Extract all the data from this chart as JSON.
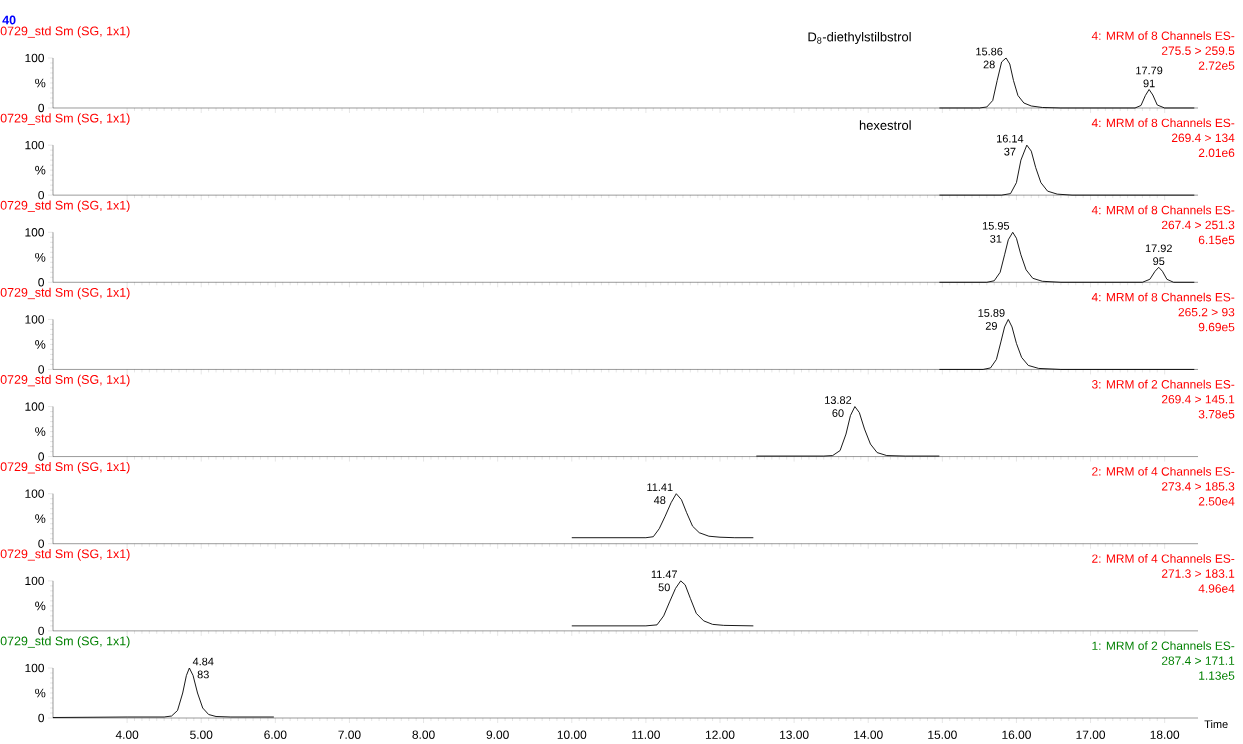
{
  "chart_data": [
    {
      "type": "line",
      "title": "0729_std Sm (SG, 1x1)",
      "subtitle": "D$_{8}$-diethylstilbstrol",
      "ylabel": "%",
      "color": "#000000",
      "xlim": [
        3.0,
        18.45
      ],
      "ylim": [
        0,
        100
      ],
      "yticks": [
        0,
        100
      ],
      "tick_labels": "y",
      "xticks": [
        {
          "value": 4,
          "label": null
        },
        {
          "value": 5,
          "label": null
        },
        {
          "value": 6,
          "label": null
        },
        {
          "value": 7,
          "label": null
        },
        {
          "value": 8,
          "label": null
        },
        {
          "value": 9,
          "label": null
        },
        {
          "value": 10,
          "label": null
        },
        {
          "value": 11,
          "label": null
        },
        {
          "value": 12,
          "label": null
        },
        {
          "value": 13,
          "label": null
        },
        {
          "value": 14,
          "label": null
        },
        {
          "value": 15,
          "label": null
        },
        {
          "value": 16,
          "label": null
        },
        {
          "value": 17,
          "label": null
        },
        {
          "value": 18,
          "label": null
        }
      ],
      "x": [
        14.96,
        15.5,
        15.6,
        15.68,
        15.74,
        15.8,
        15.86,
        15.91,
        15.96,
        16.02,
        16.1,
        16.2,
        16.35,
        16.6,
        17.6,
        17.68,
        17.74,
        17.79,
        17.84,
        17.9,
        18.0,
        18.4
      ],
      "values": [
        0,
        0,
        2,
        15,
        55,
        92,
        100,
        88,
        55,
        25,
        10,
        4,
        1,
        0,
        0,
        5,
        25,
        37,
        26,
        6,
        0,
        0
      ],
      "annotations": [
        "40",
        "4: MRM of 8 Channels ES-",
        "275.5 > 259.5",
        "2.72e5",
        {
          "text": "15.86",
          "x": 15.86,
          "y": 100
        },
        {
          "text": "28",
          "x": 15.86,
          "y": 100
        },
        {
          "text": "17.79",
          "x": 17.79,
          "y": 37
        },
        {
          "text": "91",
          "x": 17.79,
          "y": 37
        }
      ]
    },
    {
      "type": "line",
      "title": "0729_std Sm (SG, 1x1)",
      "subtitle": "hexestrol",
      "ylabel": "%",
      "color": "#000000",
      "xlim": [
        3.0,
        18.45
      ],
      "ylim": [
        0,
        100
      ],
      "yticks": [
        0,
        100
      ],
      "tick_labels": "y",
      "xticks": [
        {
          "value": 4,
          "label": null
        },
        {
          "value": 5,
          "label": null
        },
        {
          "value": 6,
          "label": null
        },
        {
          "value": 7,
          "label": null
        },
        {
          "value": 8,
          "label": null
        },
        {
          "value": 9,
          "label": null
        },
        {
          "value": 10,
          "label": null
        },
        {
          "value": 11,
          "label": null
        },
        {
          "value": 12,
          "label": null
        },
        {
          "value": 13,
          "label": null
        },
        {
          "value": 14,
          "label": null
        },
        {
          "value": 15,
          "label": null
        },
        {
          "value": 16,
          "label": null
        },
        {
          "value": 17,
          "label": null
        },
        {
          "value": 18,
          "label": null
        }
      ],
      "x": [
        14.96,
        15.8,
        15.92,
        16.0,
        16.06,
        16.14,
        16.2,
        16.26,
        16.33,
        16.42,
        16.55,
        16.75,
        18.4
      ],
      "values": [
        0,
        0,
        3,
        25,
        70,
        100,
        88,
        55,
        25,
        8,
        2,
        0,
        0
      ],
      "annotations": [
        "4: MRM of 8 Channels ES-",
        "269.4 > 134",
        "2.01e6",
        {
          "text": "16.14",
          "x": 16.14,
          "y": 100
        },
        {
          "text": "37",
          "x": 16.14,
          "y": 100
        }
      ]
    },
    {
      "type": "line",
      "title": "0729_std Sm (SG, 1x1)",
      "ylabel": "%",
      "color": "#000000",
      "xlim": [
        3.0,
        18.45
      ],
      "ylim": [
        0,
        100
      ],
      "yticks": [
        0,
        100
      ],
      "tick_labels": "y",
      "xticks": [
        {
          "value": 4,
          "label": null
        },
        {
          "value": 5,
          "label": null
        },
        {
          "value": 6,
          "label": null
        },
        {
          "value": 7,
          "label": null
        },
        {
          "value": 8,
          "label": null
        },
        {
          "value": 9,
          "label": null
        },
        {
          "value": 10,
          "label": null
        },
        {
          "value": 11,
          "label": null
        },
        {
          "value": 12,
          "label": null
        },
        {
          "value": 13,
          "label": null
        },
        {
          "value": 14,
          "label": null
        },
        {
          "value": 15,
          "label": null
        },
        {
          "value": 16,
          "label": null
        },
        {
          "value": 17,
          "label": null
        },
        {
          "value": 18,
          "label": null
        }
      ],
      "x": [
        14.96,
        15.6,
        15.7,
        15.78,
        15.84,
        15.89,
        15.95,
        16.0,
        16.06,
        16.13,
        16.22,
        16.35,
        16.6,
        17.7,
        17.8,
        17.87,
        17.92,
        17.97,
        18.03,
        18.12,
        18.4
      ],
      "values": [
        0,
        0,
        3,
        20,
        55,
        85,
        100,
        88,
        55,
        25,
        8,
        2,
        0,
        0,
        6,
        22,
        30,
        22,
        6,
        0,
        0
      ],
      "annotations": [
        "4: MRM of 8 Channels ES-",
        "267.4 > 251.3",
        "6.15e5",
        {
          "text": "15.95",
          "x": 15.95,
          "y": 100
        },
        {
          "text": "31",
          "x": 15.95,
          "y": 100
        },
        {
          "text": "17.92",
          "x": 17.92,
          "y": 30
        },
        {
          "text": "95",
          "x": 17.92,
          "y": 30
        }
      ]
    },
    {
      "type": "line",
      "title": "0729_std Sm (SG, 1x1)",
      "ylabel": "%",
      "color": "#000000",
      "xlim": [
        3.0,
        18.45
      ],
      "ylim": [
        0,
        100
      ],
      "yticks": [
        0,
        100
      ],
      "tick_labels": "y",
      "xticks": [
        {
          "value": 4,
          "label": null
        },
        {
          "value": 5,
          "label": null
        },
        {
          "value": 6,
          "label": null
        },
        {
          "value": 7,
          "label": null
        },
        {
          "value": 8,
          "label": null
        },
        {
          "value": 9,
          "label": null
        },
        {
          "value": 10,
          "label": null
        },
        {
          "value": 11,
          "label": null
        },
        {
          "value": 12,
          "label": null
        },
        {
          "value": 13,
          "label": null
        },
        {
          "value": 14,
          "label": null
        },
        {
          "value": 15,
          "label": null
        },
        {
          "value": 16,
          "label": null
        },
        {
          "value": 17,
          "label": null
        },
        {
          "value": 18,
          "label": null
        }
      ],
      "x": [
        14.96,
        15.55,
        15.65,
        15.73,
        15.79,
        15.84,
        15.89,
        15.94,
        16.0,
        16.07,
        16.16,
        16.3,
        16.6,
        18.4
      ],
      "values": [
        0,
        0,
        3,
        20,
        55,
        85,
        100,
        85,
        52,
        24,
        8,
        2,
        0,
        0
      ],
      "annotations": [
        "4: MRM of 8 Channels ES-",
        "265.2 > 93",
        "9.69e5",
        {
          "text": "15.89",
          "x": 15.89,
          "y": 100
        },
        {
          "text": "29",
          "x": 15.89,
          "y": 100
        }
      ]
    },
    {
      "type": "line",
      "title": "0729_std Sm (SG, 1x1)",
      "ylabel": "%",
      "color": "#000000",
      "xlim": [
        3.0,
        18.45
      ],
      "ylim": [
        0,
        100
      ],
      "yticks": [
        0,
        100
      ],
      "tick_labels": "y",
      "xticks": [
        {
          "value": 4,
          "label": null
        },
        {
          "value": 5,
          "label": null
        },
        {
          "value": 6,
          "label": null
        },
        {
          "value": 7,
          "label": null
        },
        {
          "value": 8,
          "label": null
        },
        {
          "value": 9,
          "label": null
        },
        {
          "value": 10,
          "label": null
        },
        {
          "value": 11,
          "label": null
        },
        {
          "value": 12,
          "label": null
        },
        {
          "value": 13,
          "label": null
        },
        {
          "value": 14,
          "label": null
        },
        {
          "value": 15,
          "label": null
        },
        {
          "value": 16,
          "label": null
        },
        {
          "value": 17,
          "label": null
        },
        {
          "value": 18,
          "label": null
        }
      ],
      "x": [
        12.49,
        13.4,
        13.52,
        13.62,
        13.7,
        13.76,
        13.82,
        13.88,
        13.95,
        14.03,
        14.12,
        14.25,
        14.5,
        14.96
      ],
      "values": [
        1,
        1,
        2,
        12,
        45,
        82,
        100,
        88,
        55,
        25,
        8,
        2,
        1,
        1
      ],
      "annotations": [
        "3: MRM of 2 Channels ES-",
        "269.4 > 145.1",
        "3.78e5",
        {
          "text": "13.82",
          "x": 13.82,
          "y": 100
        },
        {
          "text": "60",
          "x": 13.82,
          "y": 100
        }
      ]
    },
    {
      "type": "line",
      "title": "0729_std Sm (SG, 1x1)",
      "ylabel": "%",
      "color": "#000000",
      "xlim": [
        3.0,
        18.45
      ],
      "ylim": [
        0,
        100
      ],
      "yticks": [
        0,
        100
      ],
      "tick_labels": "y",
      "xticks": [
        {
          "value": 4,
          "label": null
        },
        {
          "value": 5,
          "label": null
        },
        {
          "value": 6,
          "label": null
        },
        {
          "value": 7,
          "label": null
        },
        {
          "value": 8,
          "label": null
        },
        {
          "value": 9,
          "label": null
        },
        {
          "value": 10,
          "label": null
        },
        {
          "value": 11,
          "label": null
        },
        {
          "value": 12,
          "label": null
        },
        {
          "value": 13,
          "label": null
        },
        {
          "value": 14,
          "label": null
        },
        {
          "value": 15,
          "label": null
        },
        {
          "value": 16,
          "label": null
        },
        {
          "value": 17,
          "label": null
        },
        {
          "value": 18,
          "label": null
        }
      ],
      "x": [
        10.0,
        10.5,
        11.0,
        11.1,
        11.18,
        11.26,
        11.34,
        11.41,
        11.48,
        11.55,
        11.63,
        11.72,
        11.85,
        12.0,
        12.2,
        12.45
      ],
      "values": [
        12,
        12,
        12,
        14,
        30,
        55,
        82,
        100,
        88,
        62,
        35,
        22,
        15,
        13,
        12,
        12
      ],
      "annotations": [
        "2: MRM of 4 Channels ES-",
        "273.4 > 185.3",
        "2.50e4",
        {
          "text": "11.41",
          "x": 11.41,
          "y": 100
        },
        {
          "text": "48",
          "x": 11.41,
          "y": 100
        }
      ]
    },
    {
      "type": "line",
      "title": "0729_std Sm (SG, 1x1)",
      "ylabel": "%",
      "color": "#000000",
      "xlim": [
        3.0,
        18.45
      ],
      "ylim": [
        0,
        100
      ],
      "yticks": [
        0,
        100
      ],
      "tick_labels": "y",
      "xticks": [
        {
          "value": 4,
          "label": null
        },
        {
          "value": 5,
          "label": null
        },
        {
          "value": 6,
          "label": null
        },
        {
          "value": 7,
          "label": null
        },
        {
          "value": 8,
          "label": null
        },
        {
          "value": 9,
          "label": null
        },
        {
          "value": 10,
          "label": null
        },
        {
          "value": 11,
          "label": null
        },
        {
          "value": 12,
          "label": null
        },
        {
          "value": 13,
          "label": null
        },
        {
          "value": 14,
          "label": null
        },
        {
          "value": 15,
          "label": null
        },
        {
          "value": 16,
          "label": null
        },
        {
          "value": 17,
          "label": null
        },
        {
          "value": 18,
          "label": null
        }
      ],
      "x": [
        10.0,
        10.6,
        11.0,
        11.15,
        11.24,
        11.32,
        11.4,
        11.47,
        11.53,
        11.6,
        11.68,
        11.78,
        11.9,
        12.05,
        12.45
      ],
      "values": [
        10,
        10,
        10,
        12,
        30,
        58,
        85,
        100,
        92,
        65,
        35,
        20,
        13,
        11,
        10
      ],
      "annotations": [
        "2: MRM of 4 Channels ES-",
        "271.3 > 183.1",
        "4.96e4",
        {
          "text": "11.47",
          "x": 11.47,
          "y": 100
        },
        {
          "text": "50",
          "x": 11.47,
          "y": 100
        }
      ]
    },
    {
      "type": "line",
      "title": "0729_std Sm (SG, 1x1)",
      "ylabel": "%",
      "xlabel": "Time",
      "color": "#000000",
      "xlim": [
        3.0,
        18.45
      ],
      "ylim": [
        0,
        100
      ],
      "yticks": [
        0,
        100
      ],
      "xticks": [
        {
          "value": 4,
          "label": "4.00"
        },
        {
          "value": 5,
          "label": "5.00"
        },
        {
          "value": 6,
          "label": "6.00"
        },
        {
          "value": 7,
          "label": "7.00"
        },
        {
          "value": 8,
          "label": "8.00"
        },
        {
          "value": 9,
          "label": "9.00"
        },
        {
          "value": 10,
          "label": "10.00"
        },
        {
          "value": 11,
          "label": "11.00"
        },
        {
          "value": 12,
          "label": "12.00"
        },
        {
          "value": 13,
          "label": "13.00"
        },
        {
          "value": 14,
          "label": "14.00"
        },
        {
          "value": 15,
          "label": "15.00"
        },
        {
          "value": 16,
          "label": "16.00"
        },
        {
          "value": 17,
          "label": "17.00"
        },
        {
          "value": 18,
          "label": "18.00"
        }
      ],
      "x": [
        3.0,
        4.0,
        4.5,
        4.6,
        4.68,
        4.75,
        4.8,
        4.84,
        4.89,
        4.95,
        5.02,
        5.1,
        5.2,
        5.4,
        5.98
      ],
      "values": [
        1,
        2,
        2,
        4,
        15,
        50,
        85,
        100,
        85,
        50,
        20,
        7,
        3,
        2,
        2
      ],
      "annotations": [
        "1: MRM of 2 Channels ES-",
        "287.4 > 171.1",
        "1.13e5",
        {
          "text": "4.84",
          "x": 4.84,
          "y": 100
        },
        {
          "text": "83",
          "x": 4.84,
          "y": 100
        }
      ]
    }
  ]
}
